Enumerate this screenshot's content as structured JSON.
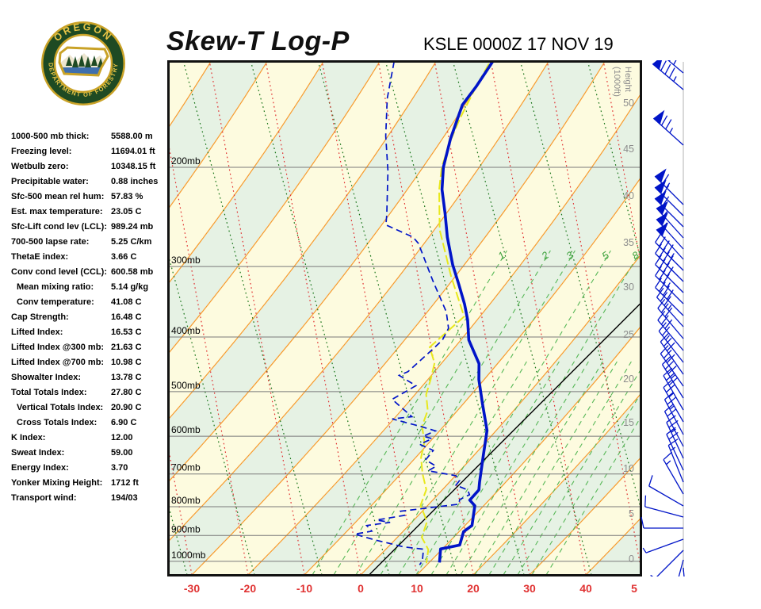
{
  "header": {
    "title": "Skew-T Log-P",
    "station": "KSLE 0000Z 17 NOV 19"
  },
  "logo": {
    "top_text": "OREGON",
    "bottom_text": "DEPARTMENT OF FORESTRY"
  },
  "stats": {
    "rows": [
      {
        "l": "1000-500 mb thick:",
        "v": "5588.00 m",
        "ind": false
      },
      {
        "l": "Freezing level:",
        "v": "11694.01 ft",
        "ind": false
      },
      {
        "l": "Wetbulb zero:",
        "v": "10348.15 ft",
        "ind": false
      },
      {
        "l": "Precipitable water:",
        "v": "0.88 inches",
        "ind": false
      },
      {
        "l": "Sfc-500 mean rel hum:",
        "v": "57.83 %",
        "ind": false
      },
      {
        "l": "Est. max temperature:",
        "v": "23.05 C",
        "ind": false
      },
      {
        "l": "Sfc-Lift cond lev (LCL):",
        "v": "989.24 mb",
        "ind": false
      },
      {
        "l": "700-500 lapse rate:",
        "v": "5.25 C/km",
        "ind": false
      },
      {
        "l": "ThetaE index:",
        "v": "3.66 C",
        "ind": false
      },
      {
        "l": "Conv cond level (CCL):",
        "v": "600.58 mb",
        "ind": false
      },
      {
        "l": "Mean mixing ratio:",
        "v": "5.14 g/kg",
        "ind": true
      },
      {
        "l": "Conv temperature:",
        "v": "41.08 C",
        "ind": true
      },
      {
        "l": "Cap Strength:",
        "v": "16.48 C",
        "ind": false
      },
      {
        "l": "Lifted Index:",
        "v": "16.53 C",
        "ind": false
      },
      {
        "l": "Lifted Index @300 mb:",
        "v": "21.63 C",
        "ind": false
      },
      {
        "l": "Lifted Index @700 mb:",
        "v": "10.98 C",
        "ind": false
      },
      {
        "l": "Showalter Index:",
        "v": "13.78 C",
        "ind": false
      },
      {
        "l": "Total Totals Index:",
        "v": "27.80 C",
        "ind": false
      },
      {
        "l": "Vertical Totals Index:",
        "v": "20.90 C",
        "ind": true
      },
      {
        "l": "Cross Totals Index:",
        "v": "6.90 C",
        "ind": true
      },
      {
        "l": "K Index:",
        "v": "12.00",
        "ind": false
      },
      {
        "l": "Sweat Index:",
        "v": "59.00",
        "ind": false
      },
      {
        "l": "Energy Index:",
        "v": "3.70",
        "ind": false
      },
      {
        "l": "Yonker Mixing Height:",
        "v": "1712 ft",
        "ind": false
      },
      {
        "l": "Transport wind:",
        "v": "194/03",
        "ind": false
      }
    ]
  },
  "chart_data": {
    "type": "line",
    "subtype": "skew-t log-p sounding",
    "colors": {
      "band_yellow": "#FDFBDF",
      "band_green": "#E6F2E4",
      "isotherm_orange": "#F89B2E",
      "dry_adiabat_green": "#177317",
      "moist_adiabat_red": "#E03030",
      "mixing_ratio_green": "#58B858",
      "pressure_line_gray": "#7A7A7A",
      "trace_blue": "#0014C8",
      "wetbulb_yellow": "#E8E81C",
      "reference_black": "#000000",
      "axis_label_red": "#E03232",
      "height_label_gray": "#8C8C8C",
      "border_black": "#111111"
    },
    "pressure_lines": [
      {
        "label": "200mb",
        "p": 200
      },
      {
        "label": "300mb",
        "p": 300
      },
      {
        "label": "400mb",
        "p": 400
      },
      {
        "label": "500mb",
        "p": 500
      },
      {
        "label": "600mb",
        "p": 600
      },
      {
        "label": "700mb",
        "p": 700
      },
      {
        "label": "800mb",
        "p": 800
      },
      {
        "label": "900mb",
        "p": 900
      },
      {
        "label": "1000mb",
        "p": 1000
      }
    ],
    "temp_axis": {
      "unit": "C",
      "ticks": [
        {
          "label": "-30",
          "t": -30
        },
        {
          "label": "-20",
          "t": -20
        },
        {
          "label": "-10",
          "t": -10
        },
        {
          "label": "0",
          "t": 0
        },
        {
          "label": "10",
          "t": 10
        },
        {
          "label": "20",
          "t": 20
        },
        {
          "label": "30",
          "t": 30
        },
        {
          "label": "40",
          "t": 40
        },
        {
          "label": "5",
          "t": 48.6
        }
      ]
    },
    "height_axis": {
      "title_lines": [
        "Height",
        "(1000ft)"
      ],
      "ticks": [
        {
          "label": "50",
          "y": 54
        },
        {
          "label": "45",
          "y": 112
        },
        {
          "label": "40",
          "y": 171
        },
        {
          "label": "35",
          "y": 230
        },
        {
          "label": "30",
          "y": 286
        },
        {
          "label": "25",
          "y": 346
        },
        {
          "label": "20",
          "y": 402
        },
        {
          "label": "15",
          "y": 457
        },
        {
          "label": "10",
          "y": 515
        },
        {
          "label": "5",
          "y": 572
        },
        {
          "label": "0",
          "y": 629
        }
      ]
    },
    "mixing_ratio": {
      "label_y": 252,
      "labels": [
        {
          "label": "1",
          "xb": 183
        },
        {
          "label": "2",
          "xb": 238
        },
        {
          "label": "3",
          "xb": 269
        },
        {
          "label": "5",
          "xb": 314
        },
        {
          "label": "8",
          "xb": 352
        }
      ],
      "extra_lines": [
        210,
        292,
        333,
        370,
        388,
        406,
        424,
        442,
        460,
        478
      ]
    },
    "series": {
      "reference_isotherm_c": 1.5,
      "temperature_p_t": [
        [
          130,
          -67.7
        ],
        [
          144,
          -66.2
        ],
        [
          155,
          -65.4
        ],
        [
          178,
          -61.5
        ],
        [
          200,
          -57.7
        ],
        [
          219,
          -54.0
        ],
        [
          241,
          -49.3
        ],
        [
          266,
          -44.6
        ],
        [
          298,
          -38.7
        ],
        [
          323,
          -34.1
        ],
        [
          350,
          -29.6
        ],
        [
          373,
          -26.3
        ],
        [
          405,
          -22.5
        ],
        [
          446,
          -16.5
        ],
        [
          476,
          -13.7
        ],
        [
          524,
          -8.9
        ],
        [
          586,
          -3.2
        ],
        [
          646,
          0.4
        ],
        [
          723,
          4.6
        ],
        [
          747,
          5.9
        ],
        [
          779,
          6.1
        ],
        [
          797,
          8.0
        ],
        [
          864,
          11.0
        ],
        [
          886,
          10.6
        ],
        [
          936,
          12.3
        ],
        [
          951,
          9.6
        ],
        [
          1005,
          11.8
        ]
      ],
      "dewpoint_p_t": [
        [
          130,
          -85.2
        ],
        [
          151,
          -79.9
        ],
        [
          176,
          -73.5
        ],
        [
          203,
          -66.9
        ],
        [
          243,
          -59.3
        ],
        [
          253,
          -57.7
        ],
        [
          266,
          -50.7
        ],
        [
          273,
          -48.6
        ],
        [
          318,
          -39.4
        ],
        [
          361,
          -31.5
        ],
        [
          386,
          -28.2
        ],
        [
          405,
          -27.2
        ],
        [
          422,
          -27.3
        ],
        [
          461,
          -27.7
        ],
        [
          468,
          -28.6
        ],
        [
          488,
          -23.8
        ],
        [
          516,
          -25.6
        ],
        [
          554,
          -19.0
        ],
        [
          559,
          -22.1
        ],
        [
          577,
          -15.5
        ],
        [
          587,
          -12.3
        ],
        [
          600,
          -13.5
        ],
        [
          606,
          -11.5
        ],
        [
          620,
          -12.7
        ],
        [
          636,
          -9.2
        ],
        [
          661,
          -8.9
        ],
        [
          678,
          -5.9
        ],
        [
          691,
          -6.5
        ],
        [
          705,
          -0.7
        ],
        [
          719,
          0.8
        ],
        [
          733,
          1.0
        ],
        [
          747,
          3.9
        ],
        [
          762,
          5.1
        ],
        [
          777,
          4.2
        ],
        [
          792,
          4.9
        ],
        [
          815,
          -4.2
        ],
        [
          829,
          -2.8
        ],
        [
          845,
          -6.9
        ],
        [
          853,
          -4.1
        ],
        [
          864,
          -7.7
        ],
        [
          884,
          -5.8
        ],
        [
          895,
          -8.3
        ],
        [
          916,
          -3.8
        ],
        [
          943,
          2.7
        ],
        [
          952,
          6.6
        ],
        [
          999,
          8.5
        ],
        [
          1015,
          8.7
        ]
      ],
      "wetbulb_p_t": [
        [
          131,
          -68.0
        ],
        [
          144,
          -66.2
        ],
        [
          164,
          -63.4
        ],
        [
          180,
          -61.1
        ],
        [
          200,
          -58.0
        ],
        [
          219,
          -54.5
        ],
        [
          258,
          -47.3
        ],
        [
          312,
          -37.0
        ],
        [
          368,
          -27.5
        ],
        [
          403,
          -28.0
        ],
        [
          417,
          -28.2
        ],
        [
          445,
          -24.5
        ],
        [
          474,
          -22.4
        ],
        [
          506,
          -20.4
        ],
        [
          540,
          -17.3
        ],
        [
          576,
          -15.5
        ],
        [
          614,
          -12.3
        ],
        [
          655,
          -10.1
        ],
        [
          699,
          -7.0
        ],
        [
          746,
          -3.5
        ],
        [
          796,
          -1.7
        ],
        [
          850,
          2.3
        ],
        [
          907,
          4.2
        ],
        [
          953,
          7.5
        ],
        [
          1008,
          9.6
        ]
      ]
    },
    "wind_barbs": [
      {
        "y": 92,
        "d": 310,
        "k": 85
      },
      {
        "y": 113,
        "d": 310,
        "k": 85
      },
      {
        "y": 183,
        "d": 312,
        "k": 75
      },
      {
        "y": 258,
        "d": 315,
        "k": 65
      },
      {
        "y": 272,
        "d": 315,
        "k": 60
      },
      {
        "y": 286,
        "d": 315,
        "k": 60
      },
      {
        "y": 300,
        "d": 318,
        "k": 55
      },
      {
        "y": 314,
        "d": 318,
        "k": 55
      },
      {
        "y": 327,
        "d": 318,
        "k": 50
      },
      {
        "y": 341,
        "d": 315,
        "k": 45
      },
      {
        "y": 355,
        "d": 315,
        "k": 40
      },
      {
        "y": 369,
        "d": 315,
        "k": 40
      },
      {
        "y": 383,
        "d": 315,
        "k": 35
      },
      {
        "y": 398,
        "d": 315,
        "k": 40
      },
      {
        "y": 412,
        "d": 318,
        "k": 35
      },
      {
        "y": 427,
        "d": 320,
        "k": 30
      },
      {
        "y": 442,
        "d": 320,
        "k": 30
      },
      {
        "y": 457,
        "d": 322,
        "k": 25
      },
      {
        "y": 472,
        "d": 325,
        "k": 30
      },
      {
        "y": 487,
        "d": 325,
        "k": 30
      },
      {
        "y": 502,
        "d": 328,
        "k": 35
      },
      {
        "y": 517,
        "d": 330,
        "k": 30
      },
      {
        "y": 532,
        "d": 330,
        "k": 25
      },
      {
        "y": 548,
        "d": 332,
        "k": 25
      },
      {
        "y": 563,
        "d": 332,
        "k": 20
      },
      {
        "y": 578,
        "d": 335,
        "k": 25
      },
      {
        "y": 593,
        "d": 335,
        "k": 20
      },
      {
        "y": 608,
        "d": 338,
        "k": 15
      },
      {
        "y": 623,
        "d": 330,
        "k": 15
      },
      {
        "y": 638,
        "d": 300,
        "k": 10
      },
      {
        "y": 652,
        "d": 285,
        "k": 10
      },
      {
        "y": 666,
        "d": 270,
        "k": 10
      },
      {
        "y": 680,
        "d": 250,
        "k": 5
      },
      {
        "y": 694,
        "d": 225,
        "k": 5
      },
      {
        "y": 706,
        "d": 195,
        "k": 5
      },
      {
        "y": 716,
        "d": 175,
        "k": 5
      }
    ]
  }
}
